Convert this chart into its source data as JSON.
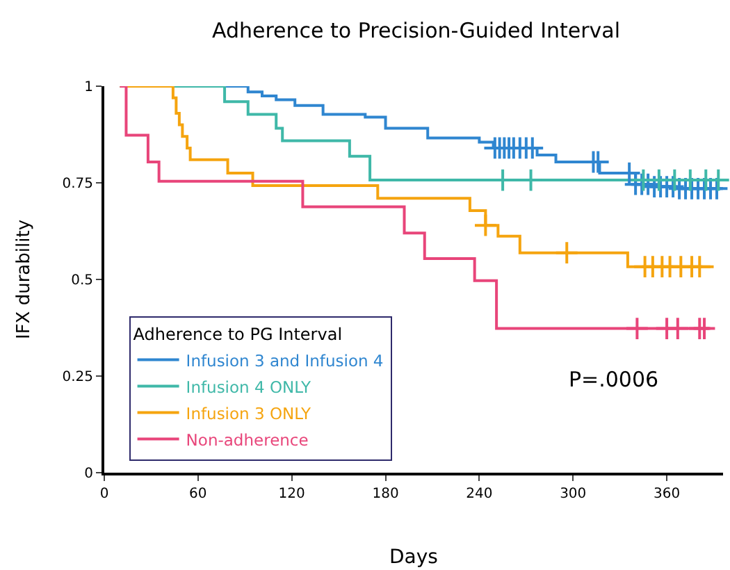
{
  "chart_data": {
    "type": "step",
    "title": "Adherence to Precision-Guided Interval",
    "xlabel": "Days",
    "ylabel": "IFX durability",
    "xlim": [
      0,
      396
    ],
    "xticks": [
      0,
      60,
      120,
      180,
      240,
      300,
      360
    ],
    "ylim": [
      0,
      1
    ],
    "yticks": [
      0,
      0.25,
      0.5,
      0.75,
      1
    ],
    "legend": "bottom left",
    "legend_title": "Adherence to PG Interval",
    "annotations": [
      "P=.0006"
    ],
    "series": [
      {
        "name": "Infusion 3 and Infusion 4",
        "color": "#2f86d0",
        "x": [
          10,
          92,
          101,
          110,
          122,
          140,
          167,
          180,
          207,
          240,
          249,
          277,
          289,
          317,
          340,
          350,
          365,
          396
        ],
        "values": [
          1,
          0.985,
          0.975,
          0.965,
          0.95,
          0.927,
          0.92,
          0.891,
          0.866,
          0.855,
          0.84,
          0.822,
          0.804,
          0.775,
          0.746,
          0.74,
          0.735,
          0.735
        ]
      },
      {
        "name": "Infusion 4 ONLY",
        "color": "#3fb8a8",
        "x": [
          10,
          77,
          92,
          110,
          114,
          157,
          170,
          396
        ],
        "values": [
          1,
          0.96,
          0.927,
          0.891,
          0.859,
          0.819,
          0.757,
          0.757
        ]
      },
      {
        "name": "Infusion 3 ONLY",
        "color": "#f5a40f",
        "x": [
          10,
          44,
          46,
          48,
          50,
          53,
          55,
          79,
          95,
          175,
          234,
          244,
          252,
          266,
          335,
          390
        ],
        "values": [
          1,
          0.97,
          0.93,
          0.9,
          0.87,
          0.84,
          0.81,
          0.775,
          0.743,
          0.71,
          0.678,
          0.64,
          0.612,
          0.569,
          0.533,
          0.533
        ]
      },
      {
        "name": "Non-adherence",
        "color": "#e8457a",
        "x": [
          10,
          14,
          28,
          35,
          127,
          192,
          205,
          237,
          251,
          387
        ],
        "values": [
          1,
          0.873,
          0.804,
          0.754,
          0.688,
          0.62,
          0.554,
          0.497,
          0.373,
          0.373
        ]
      },
      {
        "color": "#2f86d0",
        "type": "scatter",
        "marker": "cross",
        "x": [
          250,
          253,
          256,
          259,
          262,
          266,
          270,
          274,
          313,
          316,
          336,
          340,
          344,
          348,
          352,
          356,
          360,
          364,
          368,
          372,
          376,
          380,
          384,
          388,
          392
        ],
        "values": [
          0.84,
          0.84,
          0.84,
          0.84,
          0.84,
          0.84,
          0.84,
          0.84,
          0.804,
          0.804,
          0.775,
          0.746,
          0.746,
          0.746,
          0.74,
          0.74,
          0.74,
          0.74,
          0.735,
          0.735,
          0.735,
          0.735,
          0.735,
          0.735,
          0.735
        ]
      },
      {
        "color": "#3fb8a8",
        "type": "scatter",
        "marker": "cross",
        "x": [
          255,
          273,
          345,
          355,
          365,
          375,
          385,
          393
        ],
        "values": [
          0.757,
          0.757,
          0.757,
          0.757,
          0.757,
          0.757,
          0.757,
          0.757
        ]
      },
      {
        "color": "#f5a40f",
        "type": "scatter",
        "marker": "cross",
        "x": [
          244,
          296,
          346,
          351,
          357,
          362,
          369,
          376,
          381
        ],
        "values": [
          0.64,
          0.569,
          0.533,
          0.533,
          0.533,
          0.533,
          0.533,
          0.533,
          0.533
        ]
      },
      {
        "color": "#e8457a",
        "type": "scatter",
        "marker": "cross",
        "x": [
          341,
          360,
          367,
          381,
          384
        ],
        "values": [
          0.373,
          0.373,
          0.373,
          0.373,
          0.373
        ]
      }
    ]
  }
}
